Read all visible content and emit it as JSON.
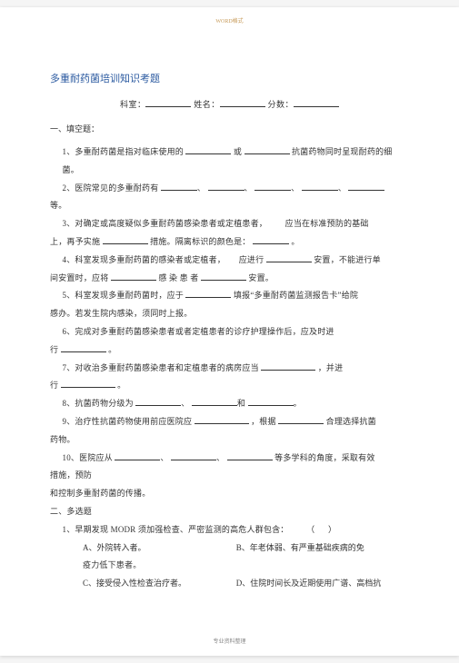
{
  "topmark": "WORD格式",
  "bottommark": "专业资料整理",
  "title": "多重耐药菌培训知识考题",
  "info": {
    "dept": "科室：",
    "name": "姓名：",
    "score": "分数："
  },
  "sec1": "一、填空题：",
  "q1a": "1、多重耐药菌是指对临床使用的",
  "q1b": "或",
  "q1c": "抗菌药物同时呈现耐药的细",
  "q1d": "菌。",
  "q2a": "2、医院常见的多重耐药有",
  "q2b": "、",
  "q2c": "、",
  "q2d": "、",
  "q2e": "、",
  "q2f": "等。",
  "q3a": "3、对确定或高度疑似多重耐药菌感染患者或定植患者，",
  "q3b": "应当在标准预防的基础",
  "q3c": "上，再予实施",
  "q3d": "措施。隔离标识的颜色是：",
  "q3e": "。",
  "q4a": "4、科室发现多重耐药菌的感染者或定植者，",
  "q4b": "应进行",
  "q4c": "安置，不能进行单",
  "q4d": "间安置时，应将",
  "q4e": "感 染 患 者",
  "q4f": "安置。",
  "q5a": "5、科室发现多重耐药菌时，应于",
  "q5b": "填报“多重耐药菌监测报告卡”给院",
  "q5c": "感办。若发生院内感染，须同时上报。",
  "q6a": "6、完成对多重耐药菌感染患者或者定植患者的诊疗护理操作后，应及时进",
  "q6b": "行",
  "q6c": "。",
  "q7a": "7、对收治多重耐药菌感染患者和定植患者的病房应当",
  "q7b": "，并进",
  "q7c": "行",
  "q7d": "。",
  "q8a": "8、抗菌药物分级为",
  "q8b": "、",
  "q8c": "和",
  "q8d": "。",
  "q9a": "9、治疗性抗菌药物使用前应医院应",
  "q9b": "，根据",
  "q9c": "合理选择抗菌",
  "q9d": "药物。",
  "q10a": "10、医院应从",
  "q10b": "、",
  "q10c": "、",
  "q10d": "等多学科的角度，采取有效",
  "q10e": "措施，预防",
  "q10f": "和控制多重耐药菌的传播。",
  "sec2": "二、多选题",
  "m1": "1、早期发现 MODR 须加强检查、严密监测的高危人群包含：",
  "m1p": "（",
  "m1q": "）",
  "m1A": "A、外院转入者。",
  "m1B": "B、年老体弱、有严重基础疾病的免",
  "m1Bc": "疫力低下患者。",
  "m1C": "C、接受侵入性检查治疗者。",
  "m1D": "D、住院时间长及近期使用广谱、高档抗"
}
